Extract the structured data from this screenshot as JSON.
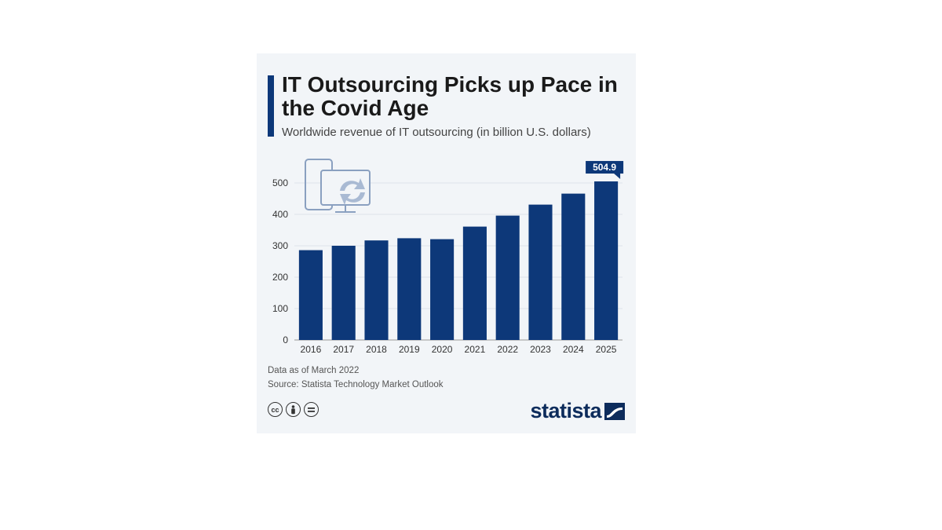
{
  "title": "IT Outsourcing Picks up Pace in the Covid Age",
  "subtitle": "Worldwide revenue of IT outsourcing (in billion U.S. dollars)",
  "note": "Data as of March 2022",
  "source": "Source: Statista Technology Market Outlook",
  "brand": "statista",
  "colors": {
    "bar": "#0d3879",
    "accent": "#0d3879",
    "background": "#f2f5f8"
  },
  "icons": [
    "cc-icon",
    "by-icon",
    "nd-icon",
    "statista-logo-icon",
    "devices-refresh-icon"
  ],
  "chart_data": {
    "type": "bar",
    "categories": [
      "2016",
      "2017",
      "2018",
      "2019",
      "2020",
      "2021",
      "2022",
      "2023",
      "2024",
      "2025"
    ],
    "values": [
      286,
      300,
      317,
      324,
      321,
      361,
      396,
      431,
      466,
      504.9
    ],
    "title": "IT Outsourcing Picks up Pace in the Covid Age",
    "ylabel": "",
    "xlabel": "",
    "ylim": [
      0,
      500
    ],
    "yticks": [
      0,
      100,
      200,
      300,
      400,
      500
    ],
    "highlight_label": "504.9",
    "grid": true
  }
}
